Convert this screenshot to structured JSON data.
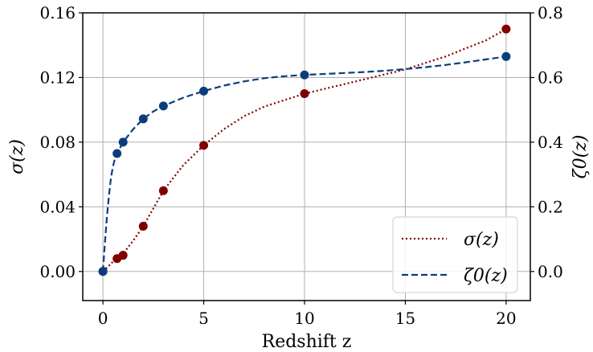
{
  "chart_data": {
    "type": "line",
    "title": "",
    "xlabel": "Redshift z",
    "ylabel_left": "σ(z)",
    "ylabel_right": "ζ0(z)",
    "xlim": [
      -1,
      21.2
    ],
    "xticks": [
      0,
      5,
      10,
      15,
      20
    ],
    "xtick_labels": [
      "0",
      "5",
      "10",
      "15",
      "20"
    ],
    "left_axis": {
      "ylim": [
        -0.018,
        0.16
      ],
      "ticks": [
        0.0,
        0.04,
        0.08,
        0.12,
        0.16
      ],
      "tick_labels": [
        "0.00",
        "0.04",
        "0.08",
        "0.12",
        "0.16"
      ]
    },
    "right_axis": {
      "ylim": [
        -0.09,
        0.8
      ],
      "ticks": [
        0.0,
        0.2,
        0.4,
        0.6,
        0.8
      ],
      "tick_labels": [
        "0.0",
        "0.2",
        "0.4",
        "0.6",
        "0.8"
      ]
    },
    "grid": true,
    "legend_position": "lower-right",
    "series": [
      {
        "name": "σ(z)",
        "axis": "left",
        "color": "#800000",
        "line_style": "dotted",
        "x": [
          0,
          0.7,
          1,
          2,
          3,
          5,
          10,
          20
        ],
        "y": [
          0.0,
          0.008,
          0.01,
          0.028,
          0.05,
          0.078,
          0.11,
          0.15
        ],
        "curve_x": [
          0,
          0.5,
          1,
          1.5,
          2,
          2.5,
          3,
          3.5,
          4,
          4.5,
          5,
          6,
          7,
          8,
          9,
          10,
          11,
          12,
          13,
          14,
          15,
          16,
          17,
          18,
          19,
          20
        ],
        "curve_y": [
          0.0,
          0.006,
          0.011,
          0.019,
          0.028,
          0.039,
          0.05,
          0.058,
          0.066,
          0.072,
          0.078,
          0.088,
          0.096,
          0.102,
          0.106,
          0.11,
          0.113,
          0.116,
          0.119,
          0.122,
          0.125,
          0.129,
          0.133,
          0.138,
          0.143,
          0.15
        ]
      },
      {
        "name": "ζ0(z)",
        "axis": "right",
        "color": "#0b3d7e",
        "line_style": "dashed",
        "x": [
          0,
          0.7,
          1,
          2,
          3,
          5,
          10,
          20
        ],
        "y": [
          0.0,
          0.365,
          0.4,
          0.472,
          0.512,
          0.558,
          0.608,
          0.665
        ],
        "curve_x": [
          0,
          0.1,
          0.2,
          0.3,
          0.4,
          0.5,
          0.6,
          0.7,
          1,
          1.5,
          2,
          2.5,
          3,
          4,
          5,
          6,
          7,
          8,
          9,
          10,
          11,
          12,
          13,
          14,
          15,
          16,
          17,
          18,
          19,
          20
        ],
        "curve_y": [
          0.0,
          0.09,
          0.17,
          0.235,
          0.29,
          0.325,
          0.35,
          0.365,
          0.4,
          0.44,
          0.472,
          0.495,
          0.512,
          0.538,
          0.558,
          0.575,
          0.588,
          0.598,
          0.604,
          0.608,
          0.611,
          0.614,
          0.617,
          0.621,
          0.626,
          0.632,
          0.639,
          0.647,
          0.656,
          0.665
        ]
      }
    ]
  }
}
